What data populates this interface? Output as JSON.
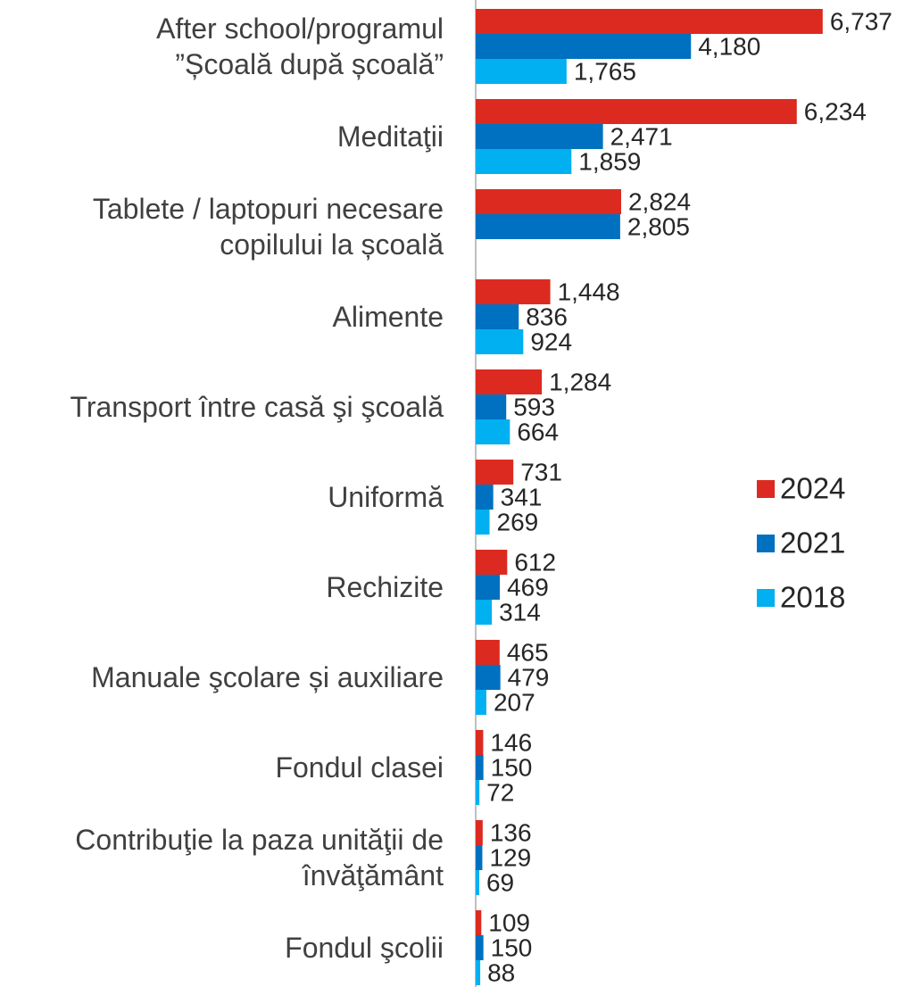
{
  "chart_data": {
    "type": "hbar",
    "categories": [
      "After school/programul\n”Școală după școală”",
      "Meditaţii",
      "Tablete / laptopuri necesare\ncopilului la școală",
      "Alimente",
      "Transport între casă şi şcoală",
      "Uniformă",
      "Rechizite",
      "Manuale şcolare și auxiliare",
      "Fondul clasei",
      "Contribuţie la paza unităţii de\nînvăţământ",
      "Fondul şcolii"
    ],
    "series": [
      {
        "name": "2024",
        "color": "#dc2a20",
        "values": [
          6737,
          6234,
          2824,
          1448,
          1284,
          731,
          612,
          465,
          146,
          136,
          109
        ],
        "value_labels": [
          "6,737",
          "6,234",
          "2,824",
          "1,448",
          "1,284",
          "731",
          "612",
          "465",
          "146",
          "136",
          "109"
        ]
      },
      {
        "name": "2021",
        "color": "#0070c0",
        "values": [
          4180,
          2471,
          2805,
          836,
          593,
          341,
          469,
          479,
          150,
          129,
          150
        ],
        "value_labels": [
          "4,180",
          "2,471",
          "2,805",
          "836",
          "593",
          "341",
          "469",
          "479",
          "150",
          "129",
          "150"
        ]
      },
      {
        "name": "2018",
        "color": "#00b0f0",
        "values": [
          1765,
          1859,
          null,
          924,
          664,
          269,
          314,
          207,
          72,
          69,
          88
        ],
        "value_labels": [
          "1,765",
          "1,859",
          null,
          "924",
          "664",
          "269",
          "314",
          "207",
          "72",
          "69",
          "88"
        ]
      }
    ],
    "xlim": [
      0,
      7000
    ],
    "legend": "right"
  }
}
